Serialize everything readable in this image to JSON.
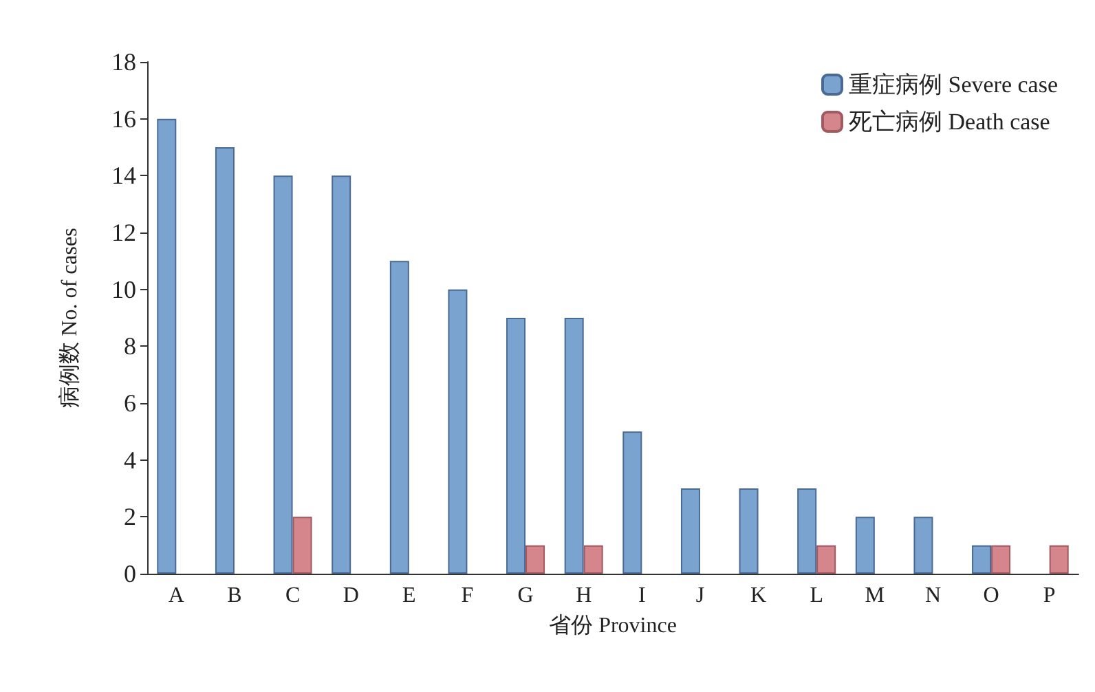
{
  "chart_data": {
    "type": "bar",
    "xlabel": "省份 Province",
    "ylabel": "病例数 No. of cases",
    "categories": [
      "A",
      "B",
      "C",
      "D",
      "E",
      "F",
      "G",
      "H",
      "I",
      "J",
      "K",
      "L",
      "M",
      "N",
      "O",
      "P"
    ],
    "series": [
      {
        "name": "重症病例 Severe case",
        "color": "#7ba3d0",
        "values": [
          16,
          15,
          14,
          14,
          11,
          10,
          9,
          9,
          5,
          3,
          3,
          3,
          2,
          2,
          1,
          null
        ]
      },
      {
        "name": "死亡病例 Death case",
        "color": "#d4868c",
        "values": [
          null,
          null,
          2,
          null,
          null,
          null,
          1,
          1,
          null,
          null,
          null,
          1,
          null,
          null,
          1,
          1
        ]
      }
    ],
    "ylim": [
      0,
      18
    ],
    "yticks": [
      0,
      2,
      4,
      6,
      8,
      10,
      12,
      14,
      16,
      18
    ],
    "grid": false,
    "legend": "top right"
  }
}
